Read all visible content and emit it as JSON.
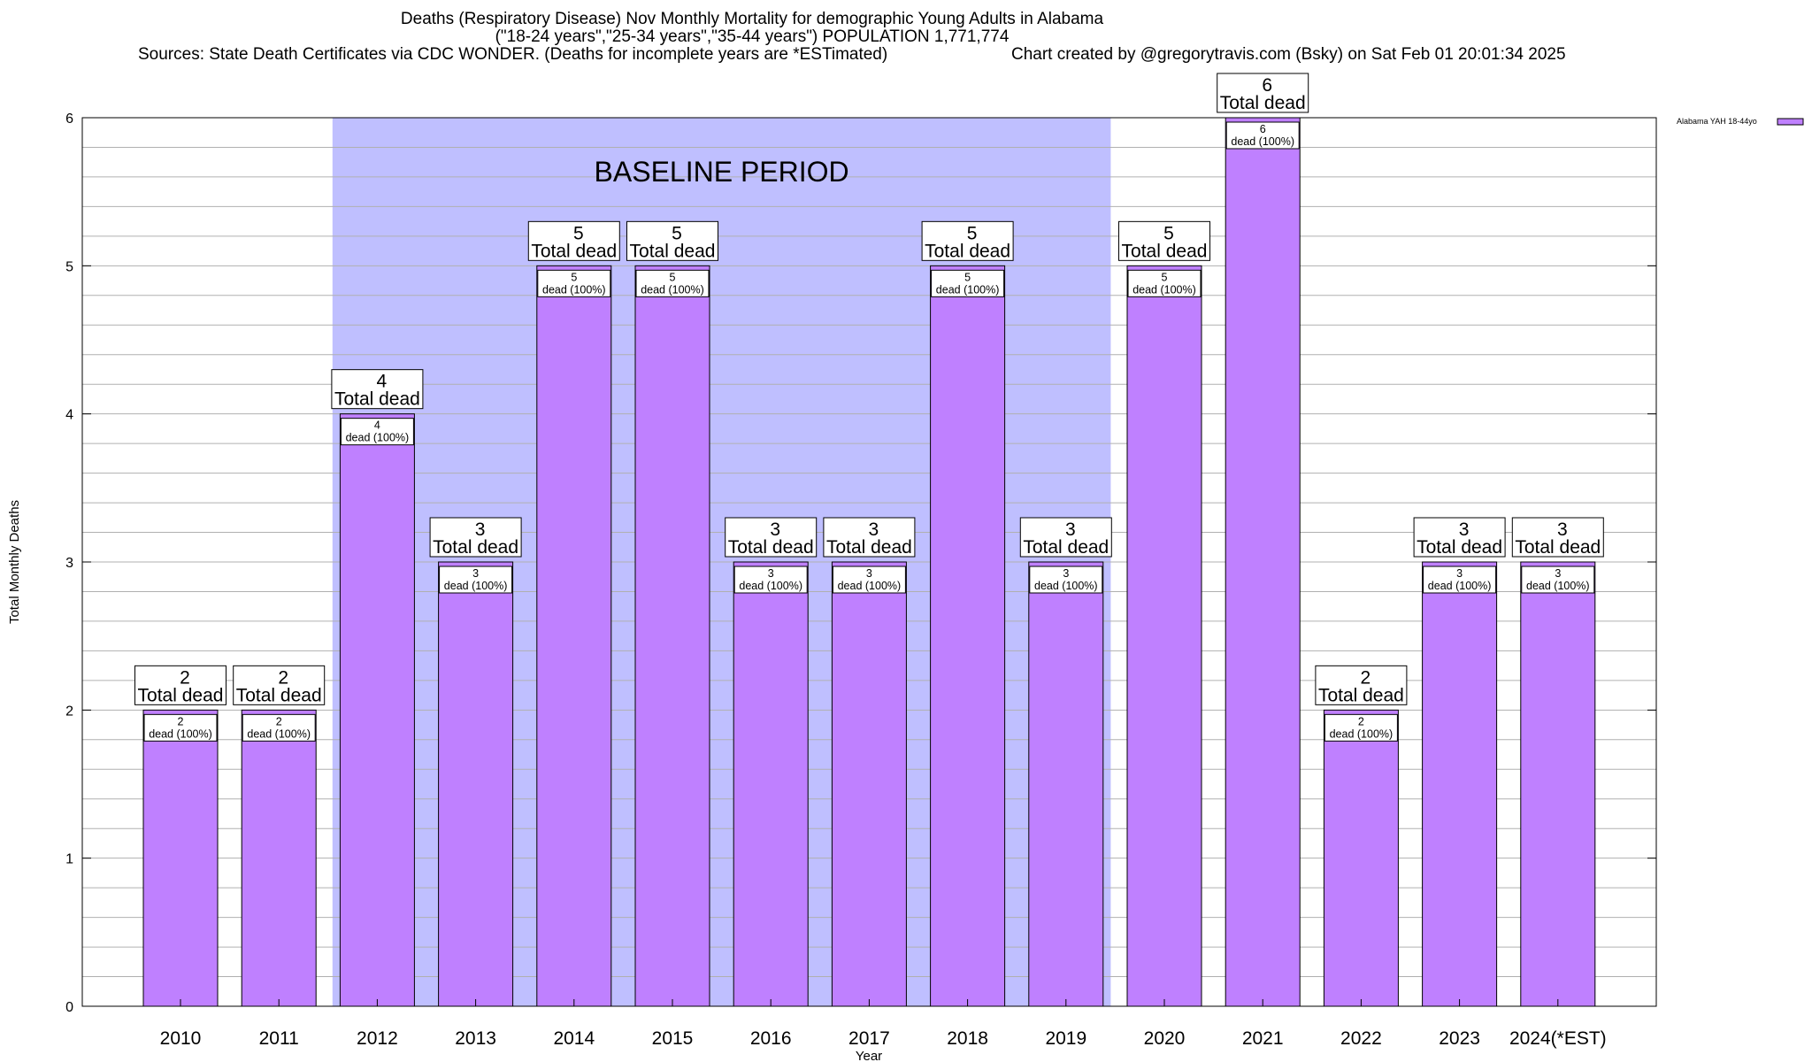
{
  "title_lines": [
    "Deaths (Respiratory Disease) Nov Monthly Mortality for demographic Young Adults in Alabama",
    "(\"18-24 years\",\"25-34 years\",\"35-44 years\") POPULATION 1,771,774"
  ],
  "sources_text": "Sources: State Death Certificates via CDC WONDER. (Deaths for incomplete years are *ESTimated)",
  "credit_text": "Chart created by @gregorytravis.com (Bsky) on Sat Feb 01 20:01:34 2025",
  "colors": {
    "bar_fill": "#bf80ff",
    "baseline_band": "#bfbfff",
    "grid": "#b0b0b0",
    "axis": "#000000"
  },
  "chart_data": {
    "type": "bar",
    "categories": [
      "2010",
      "2011",
      "2012",
      "2013",
      "2014",
      "2015",
      "2016",
      "2017",
      "2018",
      "2019",
      "2020",
      "2021",
      "2022",
      "2023",
      "2024(*EST)"
    ],
    "series": [
      {
        "name": "Alabama YAH 18-44yo",
        "values": [
          2,
          2,
          4,
          3,
          5,
          5,
          3,
          3,
          5,
          3,
          5,
          6,
          2,
          3,
          3
        ]
      }
    ],
    "xlabel": "Year",
    "ylabel": "Total Monthly Deaths",
    "ylim": [
      0,
      6
    ],
    "yticks": [
      0,
      1,
      2,
      3,
      4,
      5,
      6
    ],
    "minor_grid_step": 0.2,
    "grid": true,
    "legend_position": "top-right",
    "bar_label_main_suffix": "Total dead",
    "bar_label_pct_text": "dead (100%)",
    "annotations": [
      {
        "text": "BASELINE PERIOD",
        "x_start": "2012",
        "x_end": "2019"
      }
    ]
  }
}
